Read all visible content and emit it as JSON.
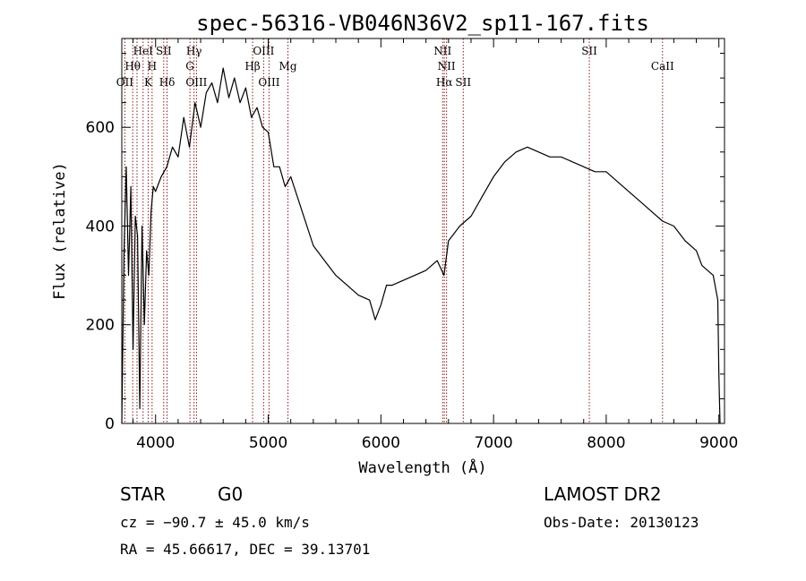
{
  "chart_data": {
    "type": "line",
    "title": "spec-56316-VB046N36V2_sp11-167.fits",
    "xlabel": "Wavelength (Å)",
    "ylabel": "Flux (relative)",
    "xlim": [
      3700,
      9050
    ],
    "ylim": [
      0,
      780
    ],
    "x_ticks": [
      4000,
      5000,
      6000,
      7000,
      8000,
      9000
    ],
    "y_ticks": [
      0,
      200,
      400,
      600
    ],
    "grid": false,
    "series": [
      {
        "x": [
          3700,
          3720,
          3740,
          3760,
          3780,
          3800,
          3820,
          3840,
          3860,
          3880,
          3900,
          3920,
          3940,
          3960,
          3980,
          4000,
          4050,
          4100,
          4150,
          4200,
          4250,
          4300,
          4350,
          4400,
          4450,
          4500,
          4550,
          4600,
          4650,
          4700,
          4750,
          4800,
          4850,
          4900,
          4950,
          5000,
          5050,
          5100,
          5150,
          5200,
          5300,
          5400,
          5500,
          5600,
          5700,
          5800,
          5900,
          5950,
          6000,
          6050,
          6100,
          6200,
          6300,
          6400,
          6500,
          6560,
          6600,
          6700,
          6800,
          6900,
          7000,
          7100,
          7200,
          7300,
          7400,
          7500,
          7600,
          7700,
          7800,
          7900,
          8000,
          8100,
          8200,
          8300,
          8400,
          8500,
          8600,
          8700,
          8800,
          8850,
          8900,
          8950,
          8990,
          9000,
          9010
        ],
        "y": [
          0,
          350,
          520,
          300,
          480,
          150,
          420,
          380,
          30,
          400,
          200,
          350,
          300,
          430,
          480,
          470,
          500,
          520,
          560,
          540,
          620,
          560,
          650,
          600,
          670,
          690,
          650,
          720,
          660,
          700,
          650,
          680,
          620,
          640,
          600,
          590,
          520,
          520,
          480,
          500,
          430,
          360,
          330,
          300,
          280,
          260,
          250,
          210,
          240,
          280,
          280,
          290,
          300,
          310,
          330,
          300,
          370,
          400,
          420,
          460,
          500,
          530,
          550,
          560,
          550,
          540,
          540,
          530,
          520,
          510,
          510,
          490,
          470,
          450,
          430,
          410,
          400,
          370,
          350,
          320,
          310,
          300,
          250,
          100,
          0
        ]
      }
    ],
    "annotations": [
      {
        "label": "OII",
        "x": 3727,
        "row": 3
      },
      {
        "label": "Hθ",
        "x": 3797,
        "row": 2
      },
      {
        "label": "HeI",
        "x": 3889,
        "row": 1
      },
      {
        "label": "K",
        "x": 3934,
        "row": 3
      },
      {
        "label": "H",
        "x": 3969,
        "row": 2
      },
      {
        "label": "SII",
        "x": 4072,
        "row": 1
      },
      {
        "label": "Hδ",
        "x": 4102,
        "row": 3
      },
      {
        "label": "Hγ",
        "x": 4341,
        "row": 1
      },
      {
        "label": "G",
        "x": 4305,
        "row": 2
      },
      {
        "label": "OIII",
        "x": 4363,
        "row": 3
      },
      {
        "label": "Hβ",
        "x": 4861,
        "row": 2
      },
      {
        "label": "OIII",
        "x": 4959,
        "row": 1
      },
      {
        "label": "OIII",
        "x": 5007,
        "row": 3
      },
      {
        "label": "Mg",
        "x": 5175,
        "row": 2
      },
      {
        "label": "NII",
        "x": 6548,
        "row": 1
      },
      {
        "label": "NII",
        "x": 6583,
        "row": 2
      },
      {
        "label": "Hα",
        "x": 6563,
        "row": 3
      },
      {
        "label": "SII",
        "x": 6731,
        "row": 3
      },
      {
        "label": "SII",
        "x": 7850,
        "row": 1
      },
      {
        "label": "CaII",
        "x": 8500,
        "row": 2
      }
    ],
    "marker_lines": [
      3727,
      3797,
      3835,
      3889,
      3934,
      3969,
      4072,
      4102,
      4305,
      4341,
      4363,
      4861,
      4959,
      5007,
      5175,
      6548,
      6563,
      6583,
      6731,
      7850,
      8500
    ]
  },
  "info": {
    "class": "STAR",
    "subclass": "G0",
    "survey": "LAMOST DR2",
    "cz": "cz = −90.7 ± 45.0 km/s",
    "obs_date": "Obs-Date: 20130123",
    "coords": "RA =  45.66617, DEC =  39.13701"
  },
  "colors": {
    "line": "#000000",
    "marker": "#8b1a1a"
  }
}
